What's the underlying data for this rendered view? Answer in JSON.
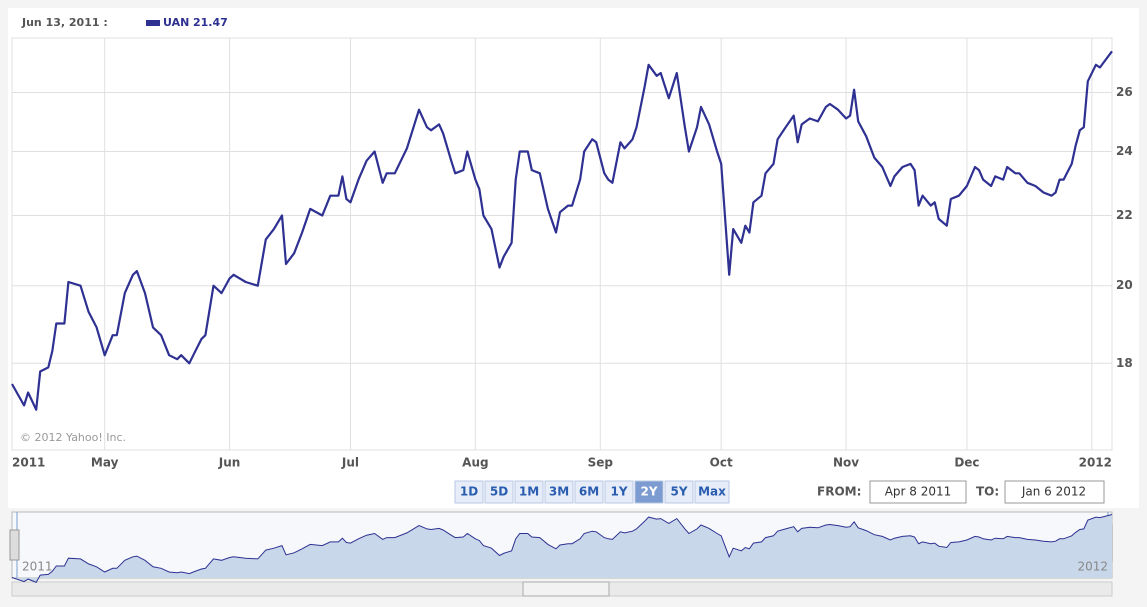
{
  "chart_data": {
    "type": "line",
    "hover_date": "Jun 13, 2011 :",
    "hover_value": 21.47,
    "copyright": "© 2012 Yahoo! Inc.",
    "log_scale": true,
    "grid": true,
    "x": [
      "2011-04-08",
      "2011-04-11",
      "2011-04-12",
      "2011-04-14",
      "2011-04-15",
      "2011-04-17",
      "2011-04-18",
      "2011-04-19",
      "2011-04-21",
      "2011-04-22",
      "2011-04-25",
      "2011-04-27",
      "2011-04-29",
      "2011-05-01",
      "2011-05-03",
      "2011-05-04",
      "2011-05-06",
      "2011-05-08",
      "2011-05-09",
      "2011-05-11",
      "2011-05-13",
      "2011-05-15",
      "2011-05-17",
      "2011-05-19",
      "2011-05-20",
      "2011-05-22",
      "2011-05-23",
      "2011-05-25",
      "2011-05-26",
      "2011-05-28",
      "2011-05-30",
      "2011-06-01",
      "2011-06-02",
      "2011-06-05",
      "2011-06-08",
      "2011-06-10",
      "2011-06-12",
      "2011-06-14",
      "2011-06-15",
      "2011-06-17",
      "2011-06-19",
      "2011-06-21",
      "2011-06-24",
      "2011-06-26",
      "2011-06-28",
      "2011-06-29",
      "2011-06-30",
      "2011-07-01",
      "2011-07-03",
      "2011-07-05",
      "2011-07-07",
      "2011-07-09",
      "2011-07-10",
      "2011-07-12",
      "2011-07-15",
      "2011-07-18",
      "2011-07-20",
      "2011-07-21",
      "2011-07-23",
      "2011-07-24",
      "2011-07-26",
      "2011-07-27",
      "2011-07-29",
      "2011-07-30",
      "2011-08-01",
      "2011-08-02",
      "2011-08-03",
      "2011-08-05",
      "2011-08-07",
      "2011-08-08",
      "2011-08-10",
      "2011-08-11",
      "2011-08-12",
      "2011-08-14",
      "2011-08-15",
      "2011-08-17",
      "2011-08-19",
      "2011-08-21",
      "2011-08-22",
      "2011-08-24",
      "2011-08-25",
      "2011-08-27",
      "2011-08-28",
      "2011-08-30",
      "2011-08-31",
      "2011-09-02",
      "2011-09-03",
      "2011-09-04",
      "2011-09-06",
      "2011-09-07",
      "2011-09-09",
      "2011-09-10",
      "2011-09-12",
      "2011-09-13",
      "2011-09-15",
      "2011-09-16",
      "2011-09-18",
      "2011-09-20",
      "2011-09-22",
      "2011-09-23",
      "2011-09-25",
      "2011-09-26",
      "2011-09-28",
      "2011-09-30",
      "2011-10-01",
      "2011-10-03",
      "2011-10-04",
      "2011-10-06",
      "2011-10-07",
      "2011-10-08",
      "2011-10-09",
      "2011-10-11",
      "2011-10-12",
      "2011-10-14",
      "2011-10-15",
      "2011-10-17",
      "2011-10-19",
      "2011-10-20",
      "2011-10-21",
      "2011-10-23",
      "2011-10-25",
      "2011-10-27",
      "2011-10-28",
      "2011-10-30",
      "2011-11-01",
      "2011-11-02",
      "2011-11-03",
      "2011-11-04",
      "2011-11-06",
      "2011-11-08",
      "2011-11-10",
      "2011-11-12",
      "2011-11-13",
      "2011-11-15",
      "2011-11-17",
      "2011-11-18",
      "2011-11-19",
      "2011-11-20",
      "2011-11-22",
      "2011-11-23",
      "2011-11-24",
      "2011-11-26",
      "2011-11-27",
      "2011-11-29",
      "2011-12-01",
      "2011-12-03",
      "2011-12-04",
      "2011-12-05",
      "2011-12-07",
      "2011-12-08",
      "2011-12-10",
      "2011-12-11",
      "2011-12-13",
      "2011-12-14",
      "2011-12-16",
      "2011-12-18",
      "2011-12-20",
      "2011-12-22",
      "2011-12-23",
      "2011-12-24",
      "2011-12-25",
      "2011-12-27",
      "2011-12-28",
      "2011-12-29",
      "2011-12-30",
      "2011-12-31",
      "2012-01-02",
      "2012-01-03",
      "2012-01-04",
      "2012-01-06"
    ],
    "series": [
      {
        "name": "UAN",
        "color": "#2e3192",
        "values": [
          17.5,
          17.0,
          17.3,
          16.9,
          17.8,
          17.9,
          18.3,
          19.0,
          19.0,
          20.1,
          20.0,
          19.3,
          18.9,
          18.2,
          18.7,
          18.7,
          19.8,
          20.3,
          20.4,
          19.8,
          18.9,
          18.7,
          18.2,
          18.1,
          18.2,
          18.0,
          18.2,
          18.6,
          18.7,
          20.0,
          19.8,
          20.2,
          20.3,
          20.1,
          20.0,
          21.3,
          21.6,
          22.0,
          20.6,
          20.9,
          21.5,
          22.2,
          22.0,
          22.6,
          22.6,
          23.2,
          22.5,
          22.4,
          23.1,
          23.7,
          24.0,
          23.0,
          23.3,
          23.3,
          24.1,
          25.4,
          24.8,
          24.7,
          24.9,
          24.6,
          23.7,
          23.3,
          23.4,
          24.0,
          23.1,
          22.8,
          22.0,
          21.6,
          20.5,
          20.8,
          21.2,
          23.1,
          24.0,
          24.0,
          23.4,
          23.3,
          22.2,
          21.5,
          22.1,
          22.3,
          22.3,
          23.1,
          24.0,
          24.4,
          24.3,
          23.3,
          23.1,
          23.0,
          24.3,
          24.1,
          24.4,
          24.8,
          26.2,
          27.0,
          26.6,
          26.7,
          25.8,
          26.7,
          24.8,
          24.0,
          24.8,
          25.5,
          24.9,
          24.0,
          23.6,
          20.3,
          21.6,
          21.2,
          21.7,
          21.5,
          22.4,
          22.6,
          23.3,
          23.6,
          24.4,
          24.8,
          25.2,
          24.3,
          24.9,
          25.1,
          25.0,
          25.5,
          25.6,
          25.4,
          25.1,
          25.2,
          26.1,
          25.0,
          24.5,
          23.8,
          23.5,
          22.9,
          23.2,
          23.5,
          23.6,
          23.4,
          22.3,
          22.6,
          22.3,
          22.4,
          21.9,
          21.7,
          22.5,
          22.6,
          22.9,
          23.5,
          23.4,
          23.1,
          22.9,
          23.2,
          23.1,
          23.5,
          23.3,
          23.3,
          23.0,
          22.9,
          22.7,
          22.6,
          22.7,
          23.1,
          23.1,
          23.6,
          24.2,
          24.7,
          24.8,
          26.4,
          27.0,
          26.9,
          27.1,
          27.5
        ]
      }
    ],
    "xlim": [
      "2011-04-08",
      "2012-01-06"
    ],
    "xticks": [
      {
        "value": "2011-04-08",
        "label": "2011"
      },
      {
        "value": "2011-05-01",
        "label": "May"
      },
      {
        "value": "2011-06-01",
        "label": "Jun"
      },
      {
        "value": "2011-07-01",
        "label": "Jul"
      },
      {
        "value": "2011-08-01",
        "label": "Aug"
      },
      {
        "value": "2011-09-01",
        "label": "Sep"
      },
      {
        "value": "2011-10-01",
        "label": "Oct"
      },
      {
        "value": "2011-11-01",
        "label": "Nov"
      },
      {
        "value": "2011-12-01",
        "label": "Dec"
      },
      {
        "value": "2012-01-01",
        "label": "2012"
      }
    ],
    "ylim": [
      16,
      28
    ],
    "yticks": [
      18,
      20,
      22,
      24,
      26
    ]
  },
  "controls": {
    "ranges": [
      "1D",
      "5D",
      "1M",
      "3M",
      "6M",
      "1Y",
      "2Y",
      "5Y",
      "Max"
    ],
    "active_range": "2Y",
    "from_label": "FROM:",
    "from": "Apr 8 2011",
    "to_label": "TO:",
    "to": "Jan 6 2012"
  },
  "navigator": {
    "start_label": "2011",
    "end_label": "2012"
  }
}
